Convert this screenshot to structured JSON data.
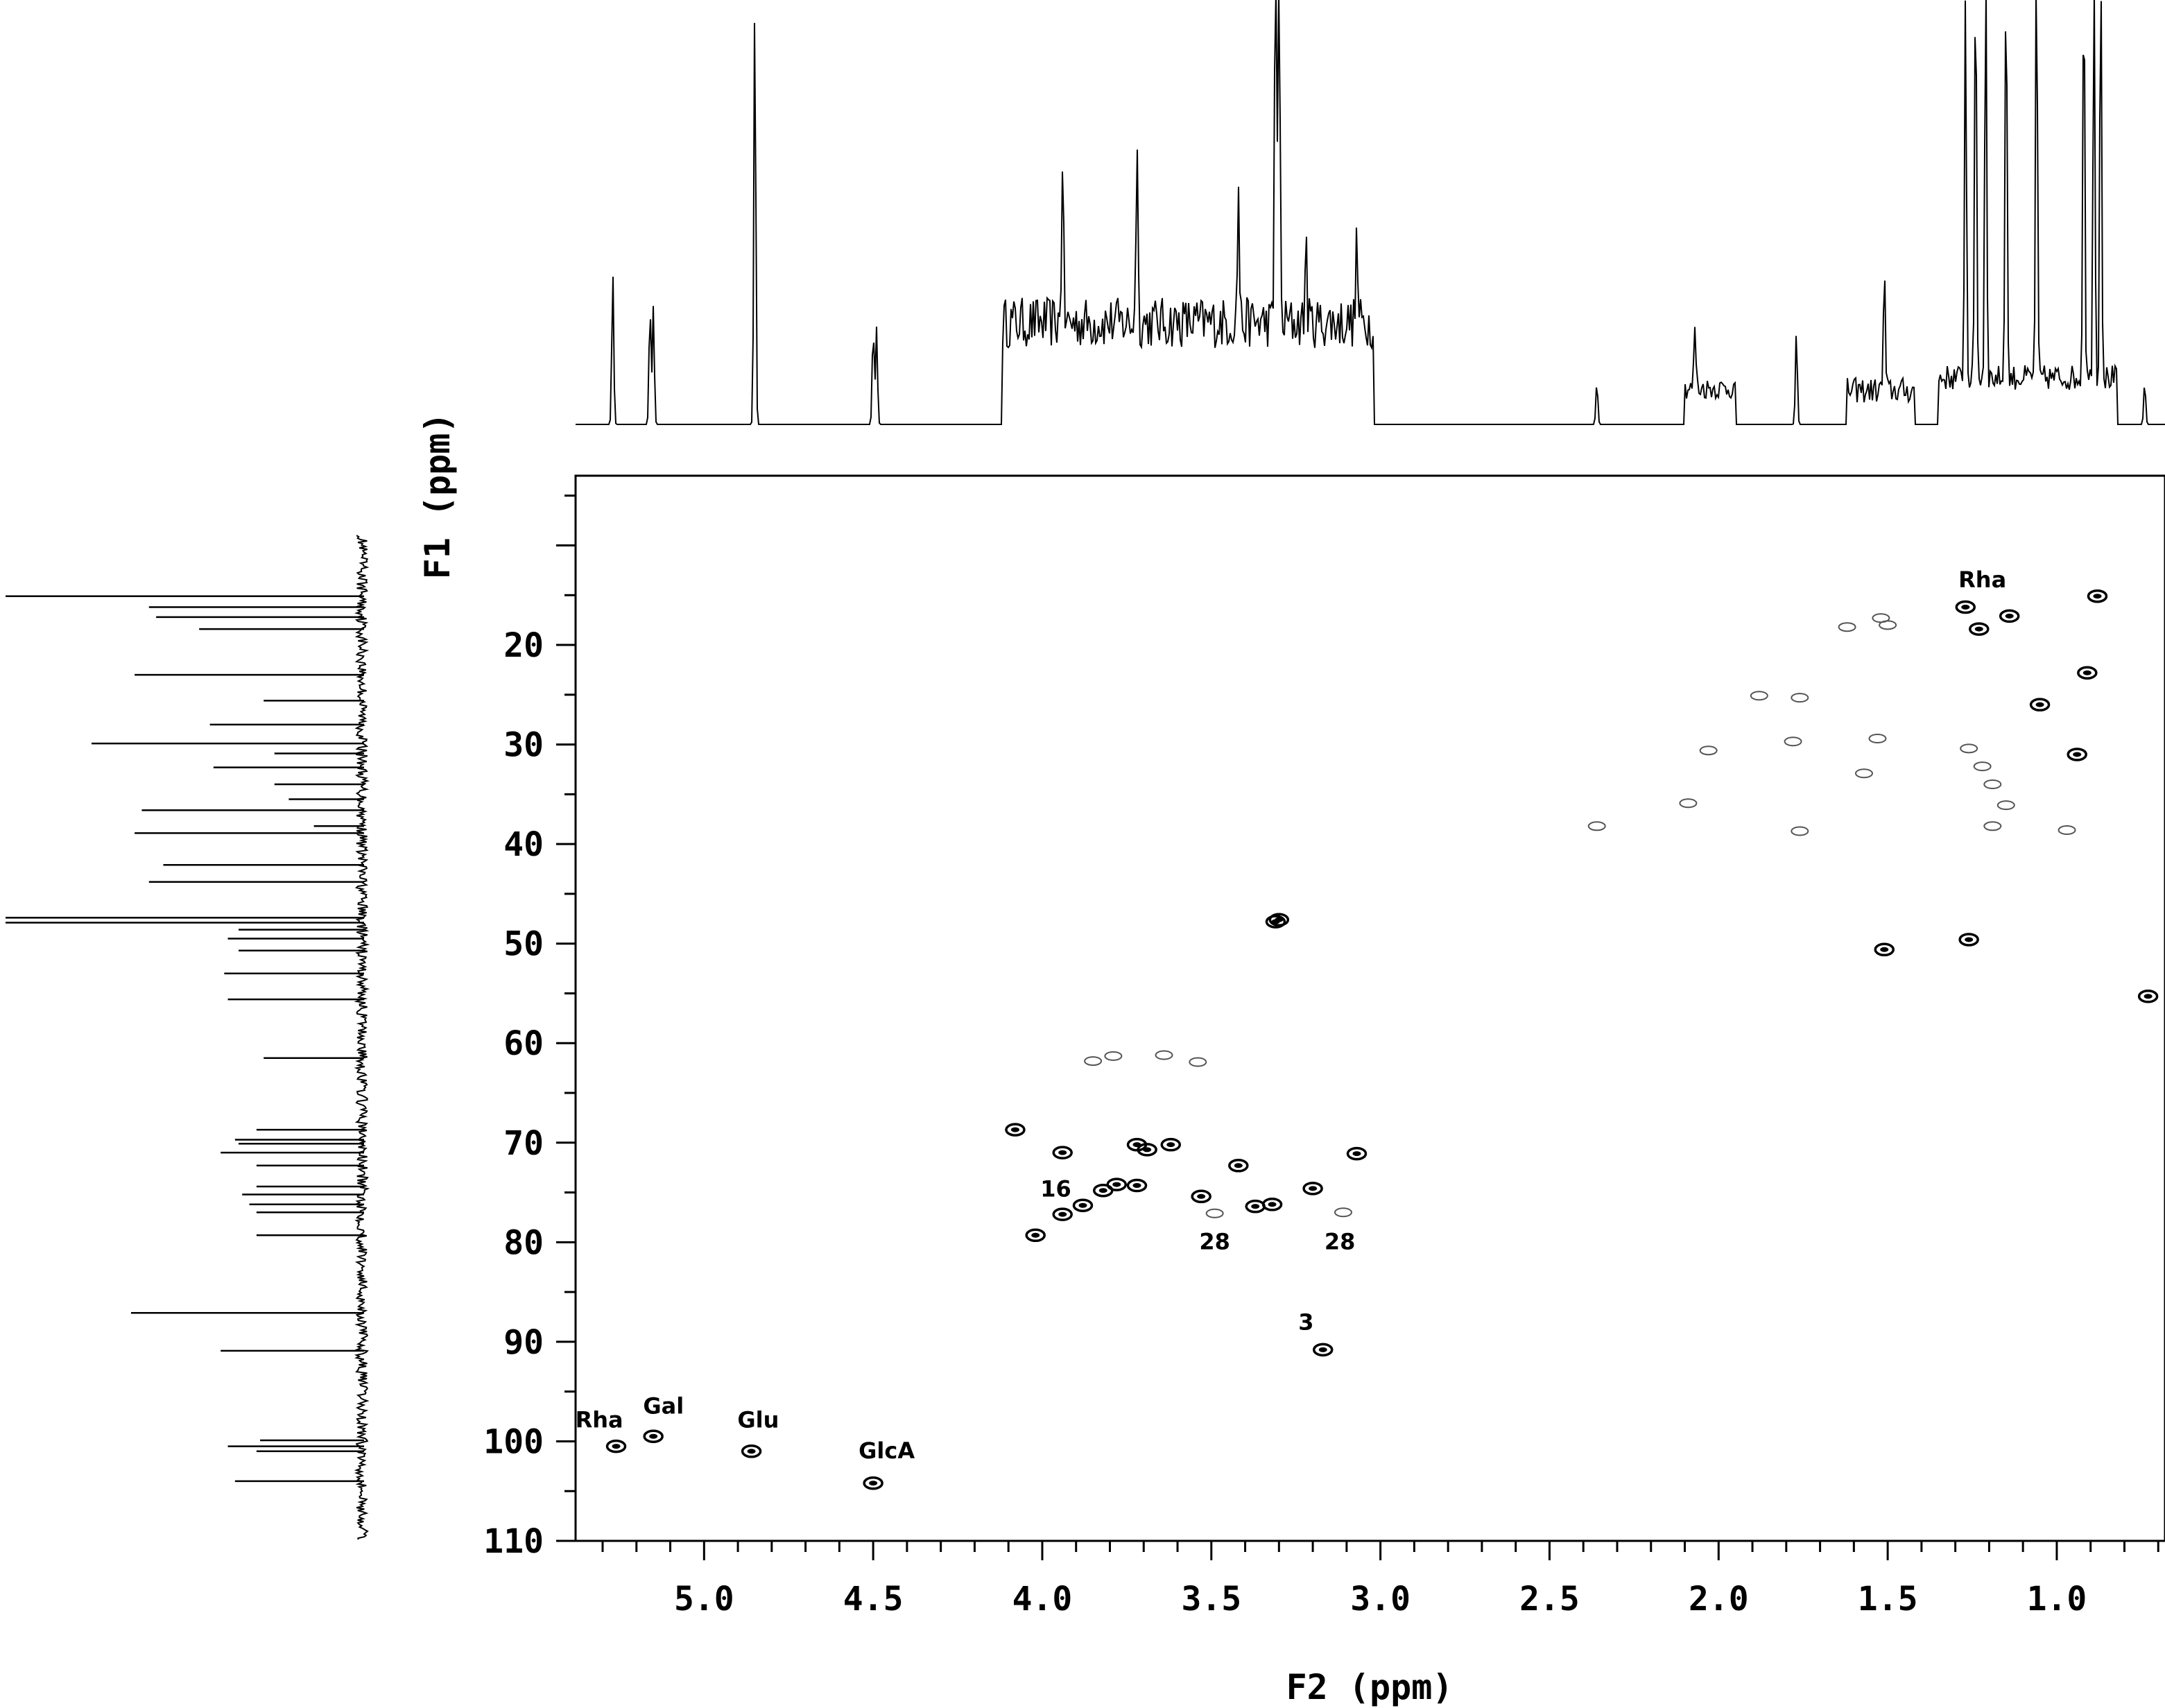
{
  "chart_data": {
    "type": "heatmap",
    "subtype": "2D NMR HSQC contour plot with 1D projections",
    "xlabel": "F2 (ppm)",
    "ylabel": "F1 (ppm)",
    "xlim": [
      5.38,
      0.68
    ],
    "ylim": [
      3,
      110
    ],
    "x_ticks": [
      "5.0",
      "4.5",
      "4.0",
      "3.5",
      "3.0",
      "2.5",
      "2.0",
      "1.5",
      "1.0"
    ],
    "x_tick_values": [
      5.0,
      4.5,
      4.0,
      3.5,
      3.0,
      2.5,
      2.0,
      1.5,
      1.0
    ],
    "y_ticks": [
      "20",
      "30",
      "40",
      "50",
      "60",
      "70",
      "80",
      "90",
      "100",
      "110"
    ],
    "y_tick_values": [
      20,
      30,
      40,
      50,
      60,
      70,
      80,
      90,
      100,
      110
    ],
    "grid": false,
    "colors": {
      "ink": "#000000",
      "background": "#ffffff",
      "weak_contour": "#555555"
    },
    "annotations": [
      {
        "text": "Rha",
        "x": 5.31,
        "y": 98.6
      },
      {
        "text": "Gal",
        "x": 5.12,
        "y": 97.2
      },
      {
        "text": "Glu",
        "x": 4.84,
        "y": 98.6
      },
      {
        "text": "GlcA",
        "x": 4.46,
        "y": 101.7
      },
      {
        "text": "16",
        "x": 3.96,
        "y": 75.4
      },
      {
        "text": "28",
        "x": 3.49,
        "y": 80.7
      },
      {
        "text": "28",
        "x": 3.12,
        "y": 80.7
      },
      {
        "text": "3",
        "x": 3.22,
        "y": 88.8
      },
      {
        "text": "Rha",
        "x": 1.22,
        "y": 14.2
      }
    ],
    "strong_peaks": [
      {
        "x": 5.26,
        "y": 100.5
      },
      {
        "x": 5.15,
        "y": 99.5
      },
      {
        "x": 4.86,
        "y": 101.0
      },
      {
        "x": 4.5,
        "y": 104.2
      },
      {
        "x": 3.3,
        "y": 47.6
      },
      {
        "x": 3.31,
        "y": 47.8
      },
      {
        "x": 4.08,
        "y": 68.7
      },
      {
        "x": 4.02,
        "y": 79.3
      },
      {
        "x": 3.94,
        "y": 71.0
      },
      {
        "x": 3.94,
        "y": 77.2
      },
      {
        "x": 3.88,
        "y": 76.3
      },
      {
        "x": 3.82,
        "y": 74.8
      },
      {
        "x": 3.78,
        "y": 74.2
      },
      {
        "x": 3.72,
        "y": 74.3
      },
      {
        "x": 3.72,
        "y": 70.2
      },
      {
        "x": 3.69,
        "y": 70.7
      },
      {
        "x": 3.62,
        "y": 70.2
      },
      {
        "x": 3.53,
        "y": 75.4
      },
      {
        "x": 3.42,
        "y": 72.3
      },
      {
        "x": 3.37,
        "y": 76.4
      },
      {
        "x": 3.32,
        "y": 76.2
      },
      {
        "x": 3.2,
        "y": 74.6
      },
      {
        "x": 3.17,
        "y": 90.8
      },
      {
        "x": 3.07,
        "y": 71.1
      },
      {
        "x": 1.27,
        "y": 16.2
      },
      {
        "x": 1.23,
        "y": 18.4
      },
      {
        "x": 1.14,
        "y": 17.1
      },
      {
        "x": 0.88,
        "y": 15.1
      },
      {
        "x": 0.91,
        "y": 22.8
      },
      {
        "x": 1.05,
        "y": 26.0
      },
      {
        "x": 0.94,
        "y": 31.0
      },
      {
        "x": 1.51,
        "y": 50.6
      },
      {
        "x": 1.26,
        "y": 49.6
      },
      {
        "x": 0.73,
        "y": 55.3
      }
    ],
    "weak_peaks": [
      {
        "x": 3.85,
        "y": 61.8
      },
      {
        "x": 3.79,
        "y": 61.3
      },
      {
        "x": 3.64,
        "y": 61.2
      },
      {
        "x": 3.54,
        "y": 61.9
      },
      {
        "x": 3.49,
        "y": 77.1
      },
      {
        "x": 3.11,
        "y": 77.0
      },
      {
        "x": 1.88,
        "y": 25.1
      },
      {
        "x": 1.76,
        "y": 25.3
      },
      {
        "x": 1.78,
        "y": 29.7
      },
      {
        "x": 1.52,
        "y": 17.3
      },
      {
        "x": 1.5,
        "y": 18.0
      },
      {
        "x": 1.62,
        "y": 18.2
      },
      {
        "x": 1.26,
        "y": 30.4
      },
      {
        "x": 1.22,
        "y": 32.2
      },
      {
        "x": 1.19,
        "y": 34.0
      },
      {
        "x": 1.15,
        "y": 36.1
      },
      {
        "x": 1.19,
        "y": 38.2
      },
      {
        "x": 2.09,
        "y": 35.9
      },
      {
        "x": 2.36,
        "y": 38.2
      },
      {
        "x": 1.76,
        "y": 38.7
      },
      {
        "x": 0.97,
        "y": 38.6
      },
      {
        "x": 1.53,
        "y": 29.4
      },
      {
        "x": 2.03,
        "y": 30.6
      },
      {
        "x": 1.57,
        "y": 32.9
      }
    ],
    "proton_projection_peaks": [
      {
        "x": 5.27,
        "h": 0.36
      },
      {
        "x": 5.16,
        "h": 0.28
      },
      {
        "x": 5.15,
        "h": 0.28
      },
      {
        "x": 4.85,
        "h": 1.0
      },
      {
        "x": 4.5,
        "h": 0.23
      },
      {
        "x": 4.49,
        "h": 0.23
      },
      {
        "x": 3.94,
        "h": 0.4
      },
      {
        "x": 3.72,
        "h": 0.44
      },
      {
        "x": 3.42,
        "h": 0.32
      },
      {
        "x": 3.31,
        "h": 1.0
      },
      {
        "x": 3.3,
        "h": 1.0
      },
      {
        "x": 3.22,
        "h": 0.2
      },
      {
        "x": 3.07,
        "h": 0.2
      },
      {
        "x": 2.36,
        "h": 0.1
      },
      {
        "x": 2.07,
        "h": 0.15
      },
      {
        "x": 1.77,
        "h": 0.22
      },
      {
        "x": 1.51,
        "h": 0.28
      },
      {
        "x": 1.27,
        "h": 0.9
      },
      {
        "x": 1.24,
        "h": 1.0
      },
      {
        "x": 1.21,
        "h": 1.0
      },
      {
        "x": 1.15,
        "h": 1.0
      },
      {
        "x": 1.06,
        "h": 1.0
      },
      {
        "x": 0.92,
        "h": 1.0
      },
      {
        "x": 0.89,
        "h": 1.0
      },
      {
        "x": 0.87,
        "h": 1.0
      },
      {
        "x": 0.74,
        "h": 0.1
      }
    ],
    "carbon_projection_peaks": [
      {
        "y": 15.1,
        "h": 1.0
      },
      {
        "y": 16.2,
        "h": 0.6
      },
      {
        "y": 17.2,
        "h": 0.58
      },
      {
        "y": 18.4,
        "h": 0.46
      },
      {
        "y": 23.0,
        "h": 0.64
      },
      {
        "y": 25.6,
        "h": 0.28
      },
      {
        "y": 28.0,
        "h": 0.43
      },
      {
        "y": 29.9,
        "h": 0.76
      },
      {
        "y": 30.9,
        "h": 0.25
      },
      {
        "y": 32.3,
        "h": 0.42
      },
      {
        "y": 34.0,
        "h": 0.25
      },
      {
        "y": 35.5,
        "h": 0.21
      },
      {
        "y": 36.6,
        "h": 0.62
      },
      {
        "y": 38.2,
        "h": 0.14
      },
      {
        "y": 38.9,
        "h": 0.64
      },
      {
        "y": 42.1,
        "h": 0.56
      },
      {
        "y": 43.8,
        "h": 0.6
      },
      {
        "y": 47.4,
        "h": 1.0
      },
      {
        "y": 47.9,
        "h": 1.0
      },
      {
        "y": 48.6,
        "h": 0.35
      },
      {
        "y": 49.5,
        "h": 0.38
      },
      {
        "y": 50.7,
        "h": 0.35
      },
      {
        "y": 53.0,
        "h": 0.39
      },
      {
        "y": 55.6,
        "h": 0.38
      },
      {
        "y": 61.5,
        "h": 0.28
      },
      {
        "y": 68.7,
        "h": 0.3
      },
      {
        "y": 69.7,
        "h": 0.36
      },
      {
        "y": 70.1,
        "h": 0.35
      },
      {
        "y": 71.0,
        "h": 0.4
      },
      {
        "y": 72.3,
        "h": 0.3
      },
      {
        "y": 74.4,
        "h": 0.3
      },
      {
        "y": 75.2,
        "h": 0.34
      },
      {
        "y": 76.2,
        "h": 0.32
      },
      {
        "y": 77.0,
        "h": 0.3
      },
      {
        "y": 79.3,
        "h": 0.3
      },
      {
        "y": 87.1,
        "h": 0.65
      },
      {
        "y": 90.9,
        "h": 0.4
      },
      {
        "y": 99.9,
        "h": 0.29
      },
      {
        "y": 100.5,
        "h": 0.38
      },
      {
        "y": 101.0,
        "h": 0.3
      },
      {
        "y": 104.0,
        "h": 0.36
      }
    ]
  }
}
